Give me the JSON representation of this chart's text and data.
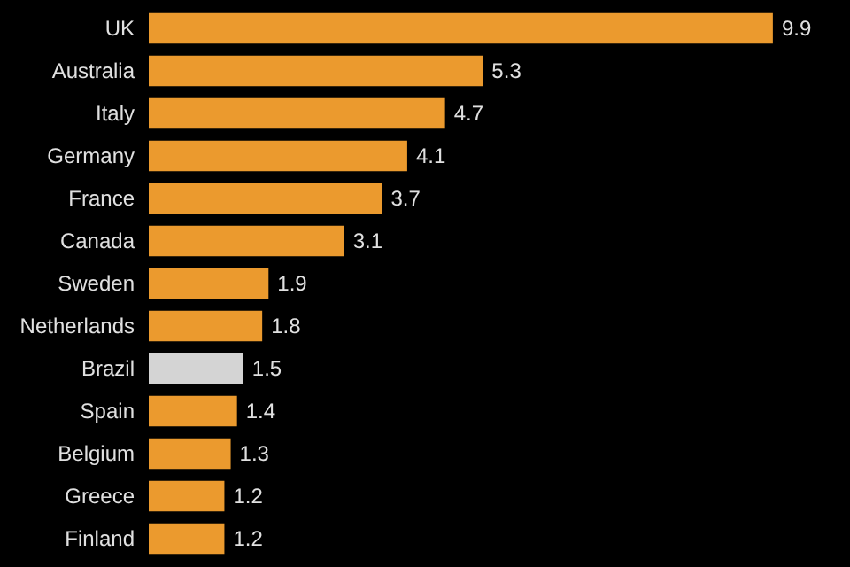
{
  "chart_data": {
    "type": "bar",
    "orientation": "horizontal",
    "categories": [
      "UK",
      "Australia",
      "Italy",
      "Germany",
      "France",
      "Canada",
      "Sweden",
      "Netherlands",
      "Brazil",
      "Spain",
      "Belgium",
      "Greece",
      "Finland"
    ],
    "values": [
      9.9,
      5.3,
      4.7,
      4.1,
      3.7,
      3.1,
      1.9,
      1.8,
      1.5,
      1.4,
      1.3,
      1.2,
      1.2
    ],
    "colors": [
      "#eb9a2e",
      "#eb9a2e",
      "#eb9a2e",
      "#eb9a2e",
      "#eb9a2e",
      "#eb9a2e",
      "#eb9a2e",
      "#eb9a2e",
      "#d4d4d4",
      "#eb9a2e",
      "#eb9a2e",
      "#eb9a2e",
      "#eb9a2e"
    ],
    "data_labels": true
  }
}
